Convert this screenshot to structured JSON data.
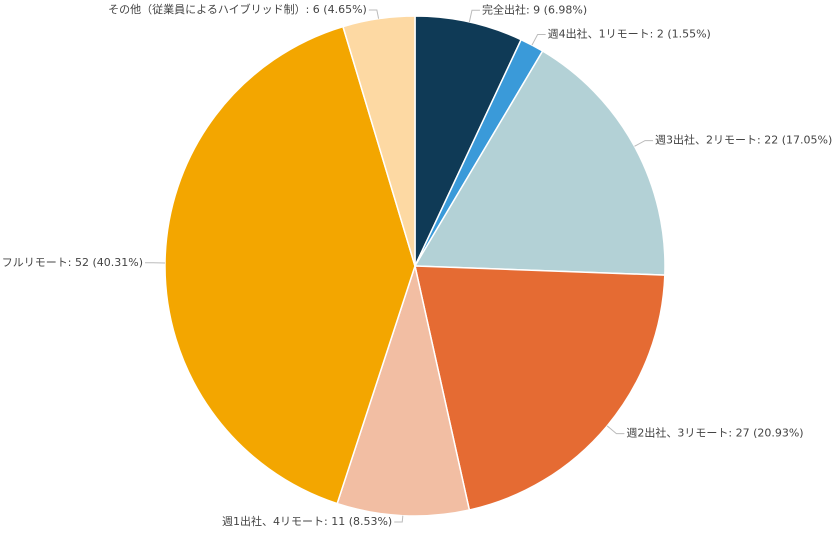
{
  "chart_data": {
    "type": "pie",
    "values": [
      9,
      2,
      22,
      27,
      11,
      52,
      6
    ],
    "value_labels": [
      "完全出社: 9 (6.98%)",
      "週4出社、1リモート: 2 (1.55%)",
      "週3出社、2リモート: 22 (17.05%)",
      "週2出社、3リモート: 27 (20.93%)",
      "週1出社、4リモート: 11 (8.53%)",
      "フルリモート: 52 (40.31%)",
      "その他（従業員によるハイブリッド制）: 6 (4.65%)"
    ],
    "colors": [
      "#0f3a56",
      "#3a9ad9",
      "#b3d1d6",
      "#e56b33",
      "#f2bea3",
      "#f3a600",
      "#fdd9a3"
    ]
  }
}
